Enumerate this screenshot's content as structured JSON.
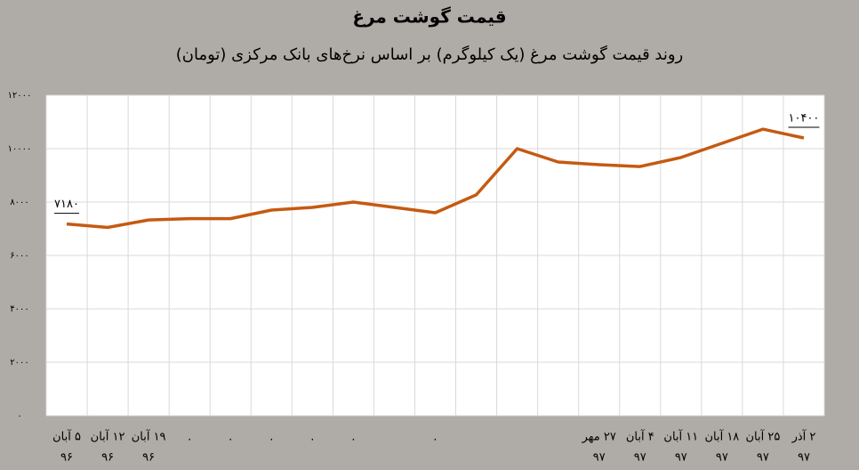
{
  "chart_data": {
    "type": "line",
    "title": "قیمت گوشت مرغ",
    "subtitle": "روند قیمت گوشت مرغ (یک کیلوگرم) بر اساس نرخ‌های بانک مرکزی (تومان)",
    "categories": [
      "۵ آبان",
      "۱۲ آبان",
      "۱۹ آبان",
      ".",
      ".",
      ".",
      ".",
      ".",
      null,
      ".",
      null,
      null,
      null,
      "۲۷ مهر",
      "۴ آبان",
      "۱۱ آبان",
      "۱۸ آبان",
      "۲۵ آبان",
      "۲ آذر"
    ],
    "category_sublabels": [
      "۹۶",
      "۹۶",
      "۹۶",
      null,
      null,
      null,
      null,
      null,
      null,
      null,
      null,
      null,
      null,
      "۹۷",
      "۹۷",
      "۹۷",
      "۹۷",
      "۹۷",
      "۹۷"
    ],
    "values": [
      7180,
      7050,
      7330,
      7380,
      7380,
      7700,
      7800,
      8000,
      7800,
      7600,
      8270,
      10000,
      9500,
      9400,
      9330,
      9670,
      10200,
      10730,
      10400
    ],
    "value_labels": [
      "۷۱۸۰",
      null,
      null,
      null,
      null,
      null,
      null,
      null,
      null,
      null,
      null,
      null,
      null,
      null,
      null,
      null,
      null,
      null,
      "۱۰۴۰۰"
    ],
    "color": "#c55a11",
    "ylim": [
      0,
      12000
    ],
    "yticks": [
      {
        "value": 0,
        "label": "۰"
      },
      {
        "value": 2000,
        "label": "۲۰۰۰"
      },
      {
        "value": 4000,
        "label": "۴۰۰۰"
      },
      {
        "value": 6000,
        "label": "۶۰۰۰"
      },
      {
        "value": 8000,
        "label": "۸۰۰۰"
      },
      {
        "value": 10000,
        "label": "۱۰۰۰۰"
      },
      {
        "value": 12000,
        "label": "۱۲۰۰۰"
      }
    ],
    "grid": true
  }
}
